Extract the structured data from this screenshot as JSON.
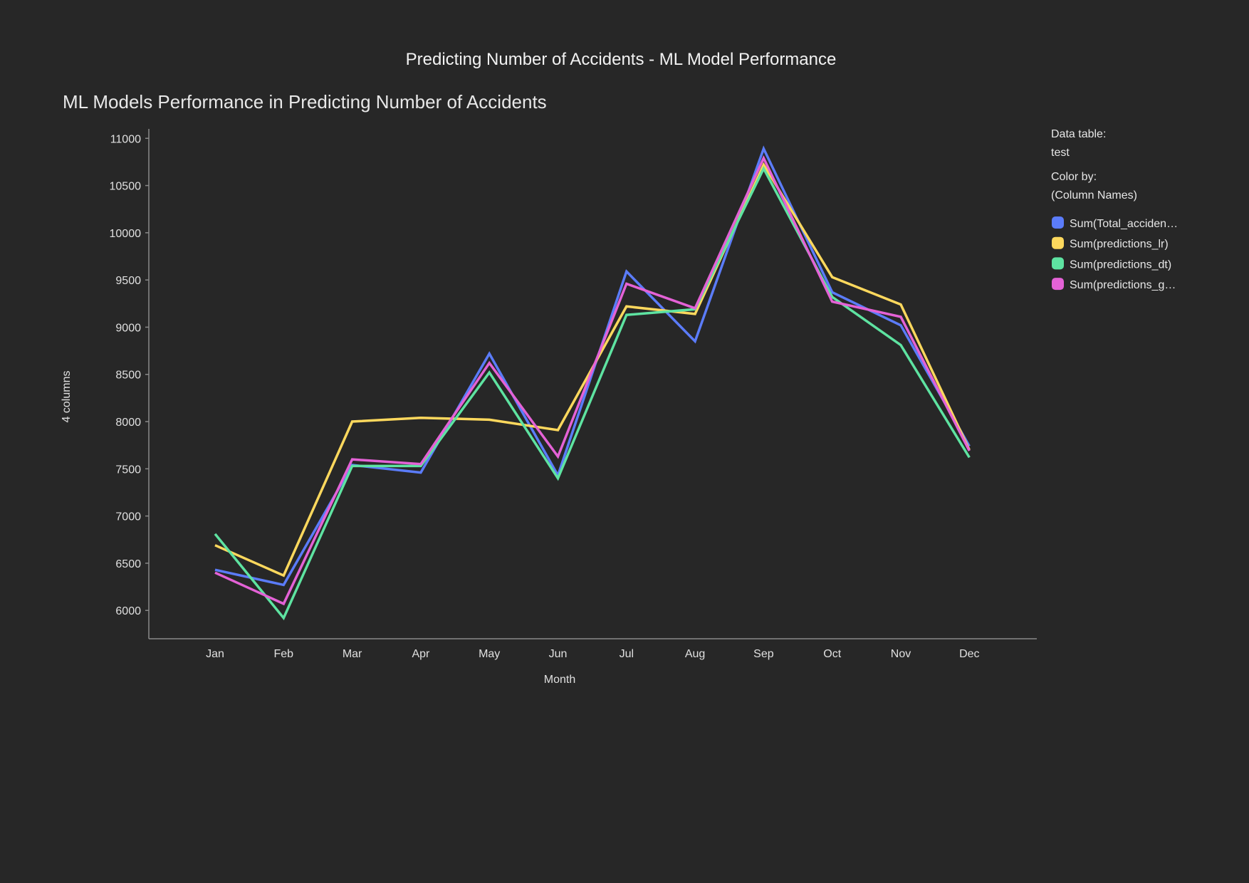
{
  "page_title": "Predicting Number of Accidents - ML Model Performance",
  "legend_panel": {
    "data_table_label": "Data table:",
    "data_table_value": "test",
    "color_by_label": "Color by:",
    "color_by_value": "(Column Names)"
  },
  "chart_data": {
    "type": "line",
    "title": "ML Models Performance in Predicting Number of Accidents",
    "xlabel": "Month",
    "ylabel": "4 columns",
    "categories": [
      "Jan",
      "Feb",
      "Mar",
      "Apr",
      "May",
      "Jun",
      "Jul",
      "Aug",
      "Sep",
      "Oct",
      "Nov",
      "Dec"
    ],
    "ylim": [
      5700,
      11100
    ],
    "yticks": [
      6000,
      6500,
      7000,
      7500,
      8000,
      8500,
      9000,
      9500,
      10000,
      10500,
      11000
    ],
    "grid": false,
    "legend_position": "right",
    "series": [
      {
        "name": "Sum(Total_acciden…",
        "color": "#5b7cfa",
        "values": [
          6430,
          6270,
          7540,
          7460,
          8720,
          7430,
          9590,
          8850,
          10890,
          9370,
          9020,
          7740
        ]
      },
      {
        "name": "Sum(predictions_lr)",
        "color": "#fdd85d",
        "values": [
          6690,
          6370,
          8000,
          8040,
          8020,
          7910,
          9220,
          9140,
          10720,
          9530,
          9240,
          7700
        ]
      },
      {
        "name": "Sum(predictions_dt)",
        "color": "#5ee3a1",
        "values": [
          6810,
          5920,
          7530,
          7530,
          8520,
          7400,
          9130,
          9190,
          10680,
          9320,
          8810,
          7620
        ]
      },
      {
        "name": "Sum(predictions_g…",
        "color": "#e462d6",
        "values": [
          6400,
          6070,
          7600,
          7550,
          8620,
          7630,
          9460,
          9200,
          10790,
          9270,
          9110,
          7690
        ]
      }
    ]
  }
}
